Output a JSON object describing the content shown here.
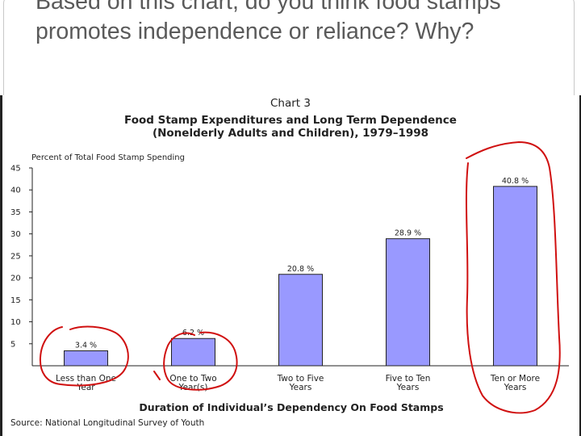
{
  "slide": {
    "question": "Based on this chart, do you think food stamps promotes independence or reliance? Why?"
  },
  "colors": {
    "bar_fill": "#9999ff",
    "annotation_circles": "#d01010",
    "question_text": "#5a5a5a"
  },
  "chart_data": {
    "type": "bar",
    "chart_number": "Chart 3",
    "title": "Food Stamp Expenditures and Long Term Dependence",
    "subtitle": "(Nonelderly Adults and Children), 1979–1998",
    "ylabel": "Percent of Total Food Stamp Spending",
    "xlabel": "Duration of Individual’s Dependency On Food Stamps",
    "source": "Source: National Longitudinal Survey of Youth",
    "categories": [
      [
        "Less than One",
        "Year"
      ],
      [
        "One to Two",
        "Year(s)"
      ],
      [
        "Two to Five",
        "Years"
      ],
      [
        "Five to Ten",
        "Years"
      ],
      [
        "Ten or More",
        "Years"
      ]
    ],
    "values": [
      3.4,
      6.2,
      20.8,
      28.9,
      40.8
    ],
    "data_labels": [
      "3.4 %",
      "6.2 %",
      "20.8 %",
      "28.9 %",
      "40.8 %"
    ],
    "ylim": [
      0,
      45
    ],
    "yticks": [
      "45",
      "40",
      "35",
      "30",
      "25",
      "20",
      "15",
      "10",
      "5"
    ],
    "grid": false,
    "legend": "none",
    "annotations": "hand-drawn red circles around categories 1, 2 and 5"
  }
}
